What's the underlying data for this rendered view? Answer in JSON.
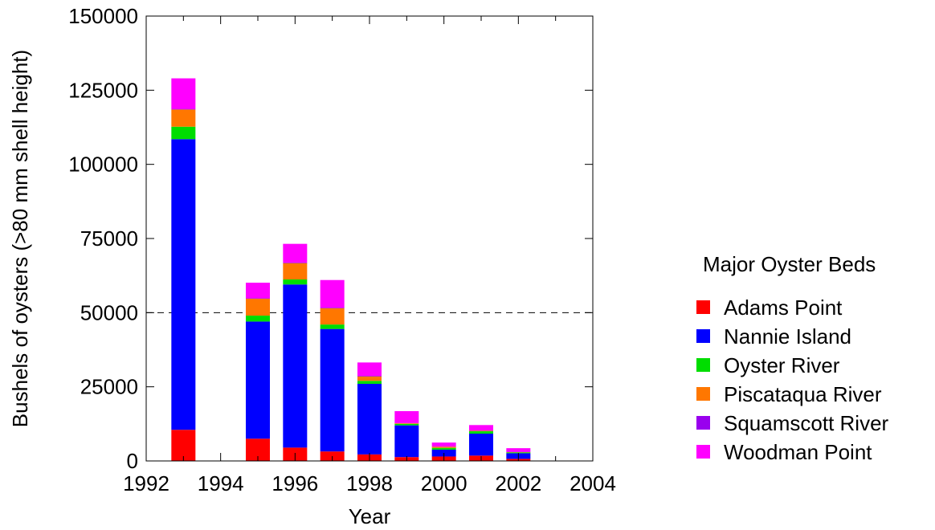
{
  "chart_data": {
    "type": "bar",
    "stacked": true,
    "title": "",
    "xlabel": "Year",
    "ylabel": "Bushels of oysters (>80 mm shell height)",
    "xlim": [
      1992,
      2004
    ],
    "ylim": [
      0,
      150000
    ],
    "x_ticks": [
      "1992",
      "1994",
      "1996",
      "1998",
      "2000",
      "2002",
      "2004"
    ],
    "y_ticks": [
      "0",
      "25000",
      "50000",
      "75000",
      "100000",
      "125000",
      "150000"
    ],
    "reference_line": {
      "y": 50000,
      "style": "dashed"
    },
    "legend": {
      "title": "Major Oyster Beds",
      "position": "right"
    },
    "x": [
      1993,
      1995,
      1996,
      1997,
      1998,
      1999,
      2000,
      2001,
      2002
    ],
    "series": [
      {
        "name": "Adams Point",
        "color": "#ff0000",
        "values": [
          10500,
          7500,
          4500,
          3200,
          2200,
          1300,
          1500,
          1800,
          700
        ]
      },
      {
        "name": "Nannie Island",
        "color": "#0000ff",
        "values": [
          98000,
          39500,
          55000,
          41300,
          23800,
          10700,
          2300,
          7400,
          1900
        ]
      },
      {
        "name": "Oyster River",
        "color": "#00dd00",
        "values": [
          4200,
          2000,
          1700,
          1500,
          1000,
          500,
          600,
          800,
          300
        ]
      },
      {
        "name": "Piscataqua River",
        "color": "#ff7700",
        "values": [
          5800,
          5700,
          5500,
          5500,
          1500,
          200,
          400,
          200,
          100
        ]
      },
      {
        "name": "Squamscott River",
        "color": "#9900ee",
        "values": [
          200,
          200,
          200,
          200,
          200,
          100,
          100,
          100,
          100
        ]
      },
      {
        "name": "Woodman Point",
        "color": "#ff00ff",
        "values": [
          10300,
          5200,
          6300,
          9300,
          4500,
          4000,
          1300,
          1800,
          1200
        ]
      }
    ]
  }
}
